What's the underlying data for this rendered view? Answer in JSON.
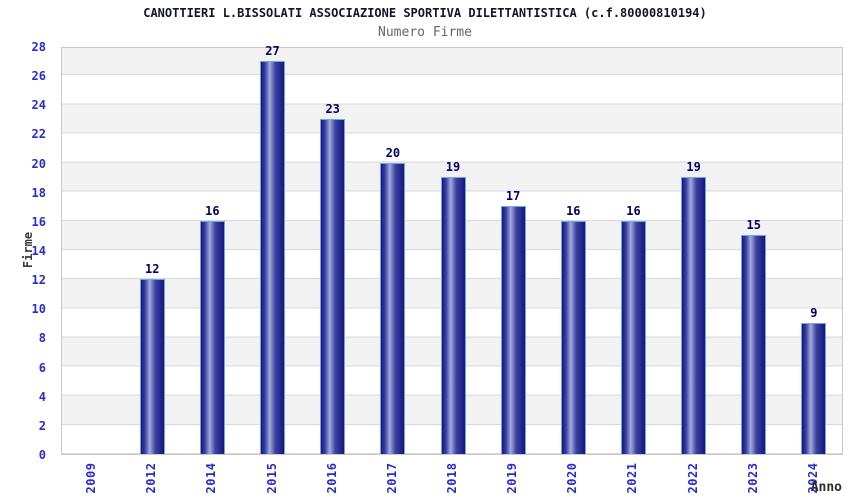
{
  "chart_data": {
    "type": "bar",
    "title": "CANOTTIERI L.BISSOLATI ASSOCIAZIONE SPORTIVA DILETTANTISTICA (c.f.80000810194)",
    "subtitle": "Numero Firme",
    "xlabel": "Anno",
    "ylabel": "Firme",
    "categories": [
      "2009",
      "2012",
      "2014",
      "2015",
      "2016",
      "2017",
      "2018",
      "2019",
      "2020",
      "2021",
      "2022",
      "2023",
      "2024"
    ],
    "values": [
      0,
      12,
      16,
      27,
      23,
      20,
      19,
      17,
      16,
      16,
      19,
      15,
      9
    ],
    "ylim": [
      0,
      28
    ],
    "ytick_step": 2,
    "grid": true,
    "legend": "none",
    "colors": {
      "bar_edge_dark": "#16167d",
      "bar_mid": "#3c42a0",
      "bar_highlight": "#a2abde",
      "bar_border": "#6fa8e4",
      "tick_label": "#2a2ad2",
      "value_label": "#000066",
      "band_gray": "#f2f2f2",
      "band_white": "#ffffff",
      "gridline": "#d9d9d9",
      "plot_border": "#c9c9c9",
      "title_color": "#14142b",
      "subtitle_color": "#666666"
    }
  }
}
